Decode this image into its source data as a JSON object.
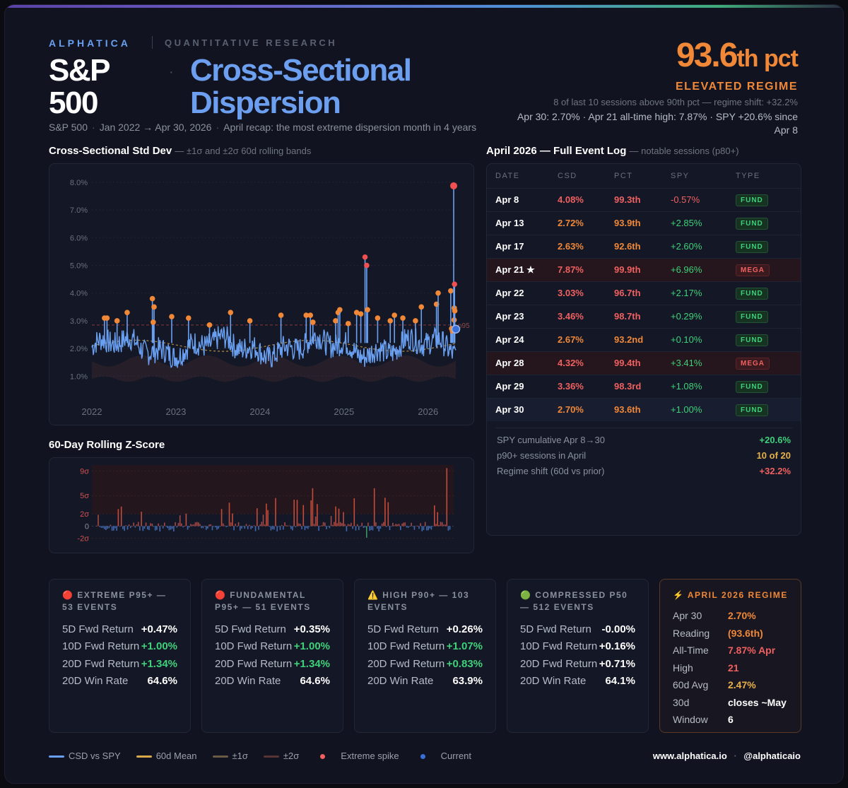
{
  "header": {
    "brand": "ALPHATICA",
    "brand_sub": "QUANTITATIVE RESEARCH",
    "title_main": "S&P 500",
    "title_dot": "·",
    "title_accent": "Cross-Sectional Dispersion",
    "subtitle_parts": [
      "S&P 500",
      "Jan 2022 → Apr 30, 2026",
      "April recap: the most extreme dispersion month in 4 years"
    ],
    "pct_value": "93.6",
    "pct_suffix": "th pct",
    "regime_label": "ELEVATED REGIME",
    "regime_line": "8 of last 10 sessions above 90th pct — regime shift: +32.2%",
    "regime_line2": "Apr 30: 2.70%  ·  Apr 21 all-time high: 7.87%  ·  SPY +20.6% since Apr 8"
  },
  "colors": {
    "accent": "#6d9ff0",
    "orange": "#f08838",
    "red": "#f06060",
    "green": "#3fd07a",
    "gold": "#e8b04a",
    "csd_line": "#6aa0f2",
    "mean_line": "#d9a94a",
    "band1": "#6b5a44",
    "band2": "#5a3434",
    "spike": "#f08838",
    "current": "#3b6fd8"
  },
  "left": {
    "csd_title": "Cross-Sectional Std Dev",
    "csd_title_note": "— ±1σ and ±2σ 60d rolling bands",
    "z_title": "60-Day Rolling Z-Score"
  },
  "chart_data": [
    {
      "type": "line",
      "title": "Cross-Sectional Std Dev",
      "subtitle": "— ±1σ and ±2σ 60d rolling bands",
      "xlabel": "",
      "ylabel": "",
      "x_ticks": [
        "2022",
        "2023",
        "2024",
        "2025",
        "2026"
      ],
      "y_ticks": [
        "1.0%",
        "2.0%",
        "3.0%",
        "4.0%",
        "5.0%",
        "6.0%",
        "7.0%",
        "8.0%"
      ],
      "ylim": [
        0.5,
        8.2
      ],
      "x_range": [
        "2022-01",
        "2026-04-30"
      ],
      "threshold_label": "p95",
      "threshold_value": 2.85,
      "series": [
        {
          "name": "CSD vs SPY",
          "values_note": "daily series approx 1.5–2.6% base"
        },
        {
          "name": "60d Mean",
          "level": 2.2
        }
      ],
      "spikes": [
        {
          "x": 2022.15,
          "y": 3.1
        },
        {
          "x": 2022.18,
          "y": 3.1
        },
        {
          "x": 2022.3,
          "y": 3.0
        },
        {
          "x": 2022.42,
          "y": 3.3
        },
        {
          "x": 2022.72,
          "y": 3.8
        },
        {
          "x": 2022.74,
          "y": 3.5
        },
        {
          "x": 2022.73,
          "y": 2.95
        },
        {
          "x": 2022.95,
          "y": 3.15
        },
        {
          "x": 2023.15,
          "y": 3.1
        },
        {
          "x": 2023.4,
          "y": 2.85
        },
        {
          "x": 2023.65,
          "y": 3.3
        },
        {
          "x": 2023.88,
          "y": 3.0
        },
        {
          "x": 2024.25,
          "y": 3.2
        },
        {
          "x": 2024.55,
          "y": 3.2
        },
        {
          "x": 2024.6,
          "y": 3.2
        },
        {
          "x": 2024.63,
          "y": 2.95
        },
        {
          "x": 2024.9,
          "y": 3.0
        },
        {
          "x": 2024.93,
          "y": 3.3
        },
        {
          "x": 2024.95,
          "y": 3.4
        },
        {
          "x": 2025.05,
          "y": 2.9
        },
        {
          "x": 2025.15,
          "y": 3.3
        },
        {
          "x": 2025.2,
          "y": 3.25
        },
        {
          "x": 2025.25,
          "y": 5.3
        },
        {
          "x": 2025.27,
          "y": 5.0
        },
        {
          "x": 2025.28,
          "y": 3.4
        },
        {
          "x": 2025.4,
          "y": 3.1
        },
        {
          "x": 2025.55,
          "y": 3.0
        },
        {
          "x": 2025.6,
          "y": 3.2
        },
        {
          "x": 2025.7,
          "y": 3.1
        },
        {
          "x": 2025.85,
          "y": 3.0
        },
        {
          "x": 2025.92,
          "y": 3.5
        },
        {
          "x": 2026.1,
          "y": 3.6
        },
        {
          "x": 2026.12,
          "y": 4.0
        },
        {
          "x": 2026.27,
          "y": 4.08
        },
        {
          "x": 2026.28,
          "y": 2.72
        },
        {
          "x": 2026.29,
          "y": 2.63
        },
        {
          "x": 2026.305,
          "y": 7.87
        },
        {
          "x": 2026.31,
          "y": 3.03
        },
        {
          "x": 2026.312,
          "y": 3.46
        },
        {
          "x": 2026.315,
          "y": 4.32
        },
        {
          "x": 2026.318,
          "y": 3.36
        }
      ],
      "current": {
        "x": 2026.33,
        "y": 2.7
      }
    },
    {
      "type": "bar",
      "title": "60-Day Rolling Z-Score",
      "y_ticks": [
        "9σ",
        "5σ",
        "2σ",
        "0",
        "-2σ"
      ],
      "ylim": [
        -2.5,
        10
      ],
      "x_range": [
        "2022-01",
        "2026-04-30"
      ],
      "note": "Positive bars red/orange, negative bars blue, deep negatives green"
    }
  ],
  "event_log": {
    "title": "April 2026 — Full Event Log",
    "note": "— notable sessions (p80+)",
    "columns": [
      "DATE",
      "CSD",
      "PCT",
      "SPY",
      "TYPE"
    ],
    "rows": [
      {
        "date": "Apr 8",
        "csd": "4.08%",
        "pct": "99.3th",
        "spy": "-0.57%",
        "type": "FUND",
        "csd_color": "#f06060",
        "pct_color": "#f06060",
        "spy_color": "#f06060"
      },
      {
        "date": "Apr 13",
        "csd": "2.72%",
        "pct": "93.9th",
        "spy": "+2.85%",
        "type": "FUND",
        "csd_color": "#f08838",
        "pct_color": "#f08838",
        "spy_color": "#3fd07a"
      },
      {
        "date": "Apr 17",
        "csd": "2.63%",
        "pct": "92.6th",
        "spy": "+2.60%",
        "type": "FUND",
        "csd_color": "#f08838",
        "pct_color": "#f08838",
        "spy_color": "#3fd07a"
      },
      {
        "date": "Apr 21 ★",
        "csd": "7.87%",
        "pct": "99.9th",
        "spy": "+6.96%",
        "type": "MEGA",
        "csd_color": "#f06060",
        "pct_color": "#f06060",
        "spy_color": "#3fd07a"
      },
      {
        "date": "Apr 22",
        "csd": "3.03%",
        "pct": "96.7th",
        "spy": "+2.17%",
        "type": "FUND",
        "csd_color": "#f06060",
        "pct_color": "#f06060",
        "spy_color": "#3fd07a"
      },
      {
        "date": "Apr 23",
        "csd": "3.46%",
        "pct": "98.7th",
        "spy": "+0.29%",
        "type": "FUND",
        "csd_color": "#f06060",
        "pct_color": "#f06060",
        "spy_color": "#3fd07a"
      },
      {
        "date": "Apr 24",
        "csd": "2.67%",
        "pct": "93.2nd",
        "spy": "+0.10%",
        "type": "FUND",
        "csd_color": "#f08838",
        "pct_color": "#f08838",
        "spy_color": "#3fd07a"
      },
      {
        "date": "Apr 28",
        "csd": "4.32%",
        "pct": "99.4th",
        "spy": "+3.41%",
        "type": "MEGA",
        "csd_color": "#f06060",
        "pct_color": "#f06060",
        "spy_color": "#3fd07a"
      },
      {
        "date": "Apr 29",
        "csd": "3.36%",
        "pct": "98.3rd",
        "spy": "+1.08%",
        "type": "FUND",
        "csd_color": "#f06060",
        "pct_color": "#f06060",
        "spy_color": "#3fd07a"
      },
      {
        "date": "Apr 30",
        "csd": "2.70%",
        "pct": "93.6th",
        "spy": "+1.00%",
        "type": "FUND",
        "csd_color": "#f08838",
        "pct_color": "#f08838",
        "spy_color": "#3fd07a"
      }
    ],
    "summary": [
      {
        "label": "SPY cumulative Apr 8→30",
        "value": "+20.6%",
        "color": "#3fd07a"
      },
      {
        "label": "p90+ sessions in April",
        "value": "10 of 20",
        "color": "#e8b04a"
      },
      {
        "label": "Regime shift (60d vs prior)",
        "value": "+32.2%",
        "color": "#f06060"
      }
    ]
  },
  "cards": [
    {
      "icon": "🔴",
      "title": "EXTREME P95+ — 53 EVENTS",
      "rows": [
        {
          "label": "5D Fwd Return",
          "value": "+0.47%",
          "color": "#ffffff"
        },
        {
          "label": "10D Fwd Return",
          "value": "+1.00%",
          "color": "#3fd07a"
        },
        {
          "label": "20D Fwd Return",
          "value": "+1.34%",
          "color": "#3fd07a"
        },
        {
          "label": "20D Win Rate",
          "value": "64.6%",
          "color": "#ffffff"
        }
      ]
    },
    {
      "icon": "🔴",
      "title": "FUNDAMENTAL P95+ — 51 EVENTS",
      "rows": [
        {
          "label": "5D Fwd Return",
          "value": "+0.35%",
          "color": "#ffffff"
        },
        {
          "label": "10D Fwd Return",
          "value": "+1.00%",
          "color": "#3fd07a"
        },
        {
          "label": "20D Fwd Return",
          "value": "+1.34%",
          "color": "#3fd07a"
        },
        {
          "label": "20D Win Rate",
          "value": "64.6%",
          "color": "#ffffff"
        }
      ]
    },
    {
      "icon": "⚠️",
      "title": "HIGH P90+ — 103 EVENTS",
      "rows": [
        {
          "label": "5D Fwd Return",
          "value": "+0.26%",
          "color": "#ffffff"
        },
        {
          "label": "10D Fwd Return",
          "value": "+1.07%",
          "color": "#3fd07a"
        },
        {
          "label": "20D Fwd Return",
          "value": "+0.83%",
          "color": "#3fd07a"
        },
        {
          "label": "20D Win Rate",
          "value": "63.9%",
          "color": "#ffffff"
        }
      ]
    },
    {
      "icon": "🟢",
      "title": "COMPRESSED P50 — 512 EVENTS",
      "rows": [
        {
          "label": "5D Fwd Return",
          "value": "-0.00%",
          "color": "#ffffff"
        },
        {
          "label": "10D Fwd Return",
          "value": "+0.16%",
          "color": "#ffffff"
        },
        {
          "label": "20D Fwd Return",
          "value": "+0.71%",
          "color": "#ffffff"
        },
        {
          "label": "20D Win Rate",
          "value": "64.1%",
          "color": "#ffffff"
        }
      ]
    }
  ],
  "regime_card": {
    "icon": "⚡",
    "title": "APRIL 2026 REGIME",
    "rows": [
      {
        "label": "Apr 30 Reading",
        "value": "2.70% (93.6th)",
        "color": "#f08838"
      },
      {
        "label": "All-Time High",
        "value": "7.87% Apr 21",
        "color": "#f06060"
      },
      {
        "label": "60d Avg",
        "value": "2.47%",
        "color": "#e8b04a"
      },
      {
        "label": "30d Window",
        "value": "closes ~May 6",
        "color": "#ffffff"
      }
    ]
  },
  "legend": [
    {
      "label": "CSD vs SPY",
      "type": "line",
      "color": "#6aa0f2"
    },
    {
      "label": "60d Mean",
      "type": "line",
      "color": "#d9a94a"
    },
    {
      "label": "±1σ",
      "type": "line",
      "color": "#6b5a44"
    },
    {
      "label": "±2σ",
      "type": "line",
      "color": "#5a3434"
    },
    {
      "label": "Extreme spike",
      "type": "dot",
      "color": "#f06060"
    },
    {
      "label": "Current",
      "type": "dot",
      "color": "#3b6fd8"
    }
  ],
  "footer": {
    "site": "www.alphatica.io",
    "sep": "·",
    "handle": "@alphaticaio"
  }
}
